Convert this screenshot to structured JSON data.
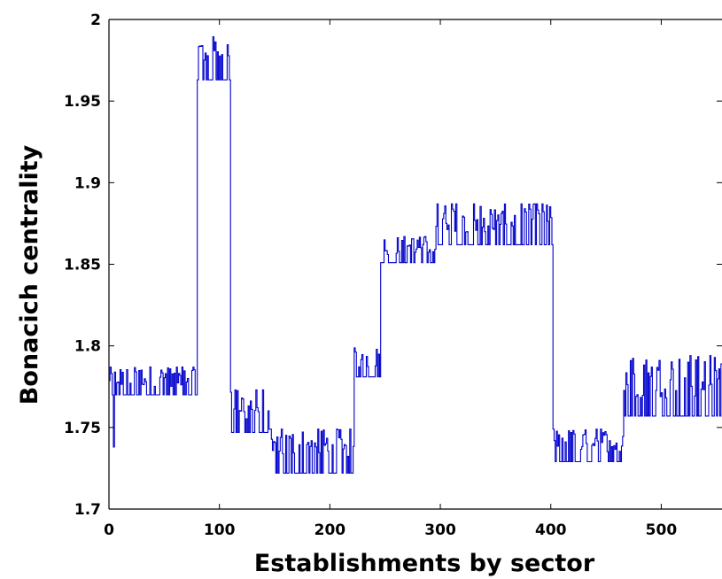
{
  "chart_data": {
    "type": "line",
    "title": "",
    "xlabel": "Establishments by sector",
    "ylabel": "Bonacich centrality",
    "xlim": [
      0,
      555
    ],
    "ylim": [
      1.7,
      2.0
    ],
    "xticks": [
      0,
      100,
      200,
      300,
      400,
      500
    ],
    "yticks": [
      1.7,
      1.75,
      1.8,
      1.85,
      1.9,
      1.95,
      2.0
    ],
    "xtick_labels": [
      "0",
      "100",
      "200",
      "300",
      "400",
      "500"
    ],
    "ytick_labels": [
      "1.7",
      "1.75",
      "1.8",
      "1.85",
      "1.9",
      "1.95",
      "2"
    ],
    "grid": false,
    "line_color": "#0000cc",
    "segments": [
      {
        "x_start": 0,
        "x_end": 80,
        "base": 1.77,
        "spike_max": 1.787,
        "note_low": 1.738
      },
      {
        "x_start": 80,
        "x_end": 110,
        "base": 1.963,
        "spike_max": 1.99
      },
      {
        "x_start": 110,
        "x_end": 145,
        "base": 1.747,
        "spike_max": 1.773
      },
      {
        "x_start": 145,
        "x_end": 222,
        "base": 1.722,
        "spike_max": 1.749
      },
      {
        "x_start": 222,
        "x_end": 246,
        "base": 1.781,
        "spike_max": 1.799
      },
      {
        "x_start": 246,
        "x_end": 296,
        "base": 1.851,
        "spike_max": 1.867
      },
      {
        "x_start": 296,
        "x_end": 402,
        "base": 1.862,
        "spike_max": 1.887
      },
      {
        "x_start": 402,
        "x_end": 466,
        "base": 1.729,
        "spike_max": 1.749
      },
      {
        "x_start": 466,
        "x_end": 555,
        "base": 1.757,
        "spike_max": 1.794
      }
    ]
  }
}
